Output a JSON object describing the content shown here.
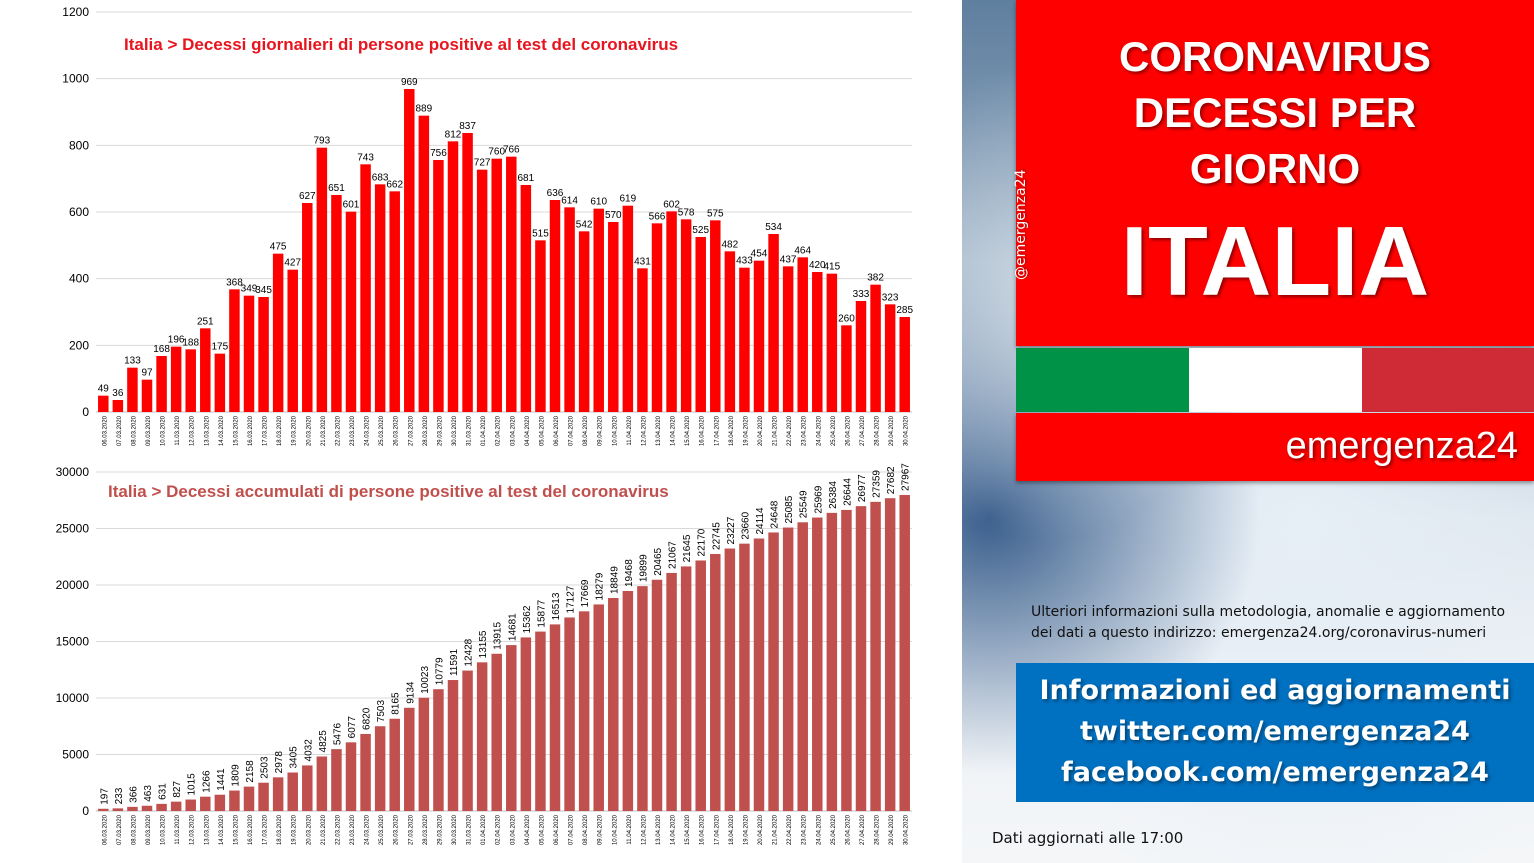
{
  "chart_data": [
    {
      "type": "bar",
      "title": "Italia > Decessi giornalieri di persone positive al test del coronavirus",
      "categories": [
        "06.03.2020",
        "07.03.2020",
        "08.03.2020",
        "09.03.2020",
        "10.03.2020",
        "11.03.2020",
        "12.03.2020",
        "13.03.2020",
        "14.03.2020",
        "15.03.2020",
        "16.03.2020",
        "17.03.2020",
        "18.03.2020",
        "19.03.2020",
        "20.03.2020",
        "21.03.2020",
        "22.03.2020",
        "23.03.2020",
        "24.03.2020",
        "25.03.2020",
        "26.03.2020",
        "27.03.2020",
        "28.03.2020",
        "29.03.2020",
        "30.03.2020",
        "31.03.2020",
        "01.04.2020",
        "02.04.2020",
        "03.04.2020",
        "04.04.2020",
        "05.04.2020",
        "06.04.2020",
        "07.04.2020",
        "08.04.2020",
        "09.04.2020",
        "10.04.2020",
        "11.04.2020",
        "12.04.2020",
        "13.04.2020",
        "14.04.2020",
        "15.04.2020",
        "16.04.2020",
        "17.04.2020",
        "18.04.2020",
        "19.04.2020",
        "20.04.2020",
        "21.04.2020",
        "22.04.2020",
        "23.04.2020",
        "24.04.2020",
        "25.04.2020",
        "26.04.2020",
        "27.04.2020",
        "28.04.2020",
        "29.04.2020",
        "30.04.2020"
      ],
      "values": [
        49,
        36,
        133,
        97,
        168,
        196,
        188,
        251,
        175,
        368,
        349,
        345,
        475,
        427,
        627,
        793,
        651,
        601,
        743,
        683,
        662,
        969,
        889,
        756,
        812,
        837,
        727,
        760,
        766,
        681,
        515,
        636,
        614,
        542,
        610,
        570,
        619,
        431,
        566,
        602,
        578,
        525,
        575,
        482,
        433,
        454,
        534,
        437,
        464,
        420,
        415,
        260,
        333,
        382,
        323,
        285
      ],
      "ylim": [
        0,
        1200
      ],
      "yticks": [
        0,
        200,
        400,
        600,
        800,
        1000,
        1200
      ],
      "grid": true,
      "bar_color": "#ff0000",
      "title_color": "#e8141e"
    },
    {
      "type": "bar",
      "title": "Italia > Decessi accumulati di persone positive al test del coronavirus",
      "categories": [
        "06.03.2020",
        "07.03.2020",
        "08.03.2020",
        "09.03.2020",
        "10.03.2020",
        "11.03.2020",
        "12.03.2020",
        "13.03.2020",
        "14.03.2020",
        "15.03.2020",
        "16.03.2020",
        "17.03.2020",
        "18.03.2020",
        "19.03.2020",
        "20.03.2020",
        "21.03.2020",
        "22.03.2020",
        "23.03.2020",
        "24.03.2020",
        "25.03.2020",
        "26.03.2020",
        "27.03.2020",
        "28.03.2020",
        "29.03.2020",
        "30.03.2020",
        "31.03.2020",
        "01.04.2020",
        "02.04.2020",
        "03.04.2020",
        "04.04.2020",
        "05.04.2020",
        "06.04.2020",
        "07.04.2020",
        "08.04.2020",
        "09.04.2020",
        "10.04.2020",
        "11.04.2020",
        "12.04.2020",
        "13.04.2020",
        "14.04.2020",
        "15.04.2020",
        "16.04.2020",
        "17.04.2020",
        "18.04.2020",
        "19.04.2020",
        "20.04.2020",
        "21.04.2020",
        "22.04.2020",
        "23.04.2020",
        "24.04.2020",
        "25.04.2020",
        "26.04.2020",
        "27.04.2020",
        "28.04.2020",
        "29.04.2020",
        "30.04.2020"
      ],
      "values": [
        197,
        233,
        366,
        463,
        631,
        827,
        1015,
        1266,
        1441,
        1809,
        2158,
        2503,
        2978,
        3405,
        4032,
        4825,
        5476,
        6077,
        6820,
        7503,
        8165,
        9134,
        10023,
        10779,
        11591,
        12428,
        13155,
        13915,
        14681,
        15362,
        15877,
        16513,
        17127,
        17669,
        18279,
        18849,
        19468,
        19899,
        20465,
        21067,
        21645,
        22170,
        22745,
        23227,
        23660,
        24114,
        24648,
        25085,
        25549,
        25969,
        26384,
        26644,
        26977,
        27359,
        27682,
        27967
      ],
      "ylim": [
        0,
        30000
      ],
      "yticks": [
        0,
        5000,
        10000,
        15000,
        20000,
        25000,
        30000
      ],
      "grid": true,
      "bar_color": "#c0504d",
      "title_color": "#c0504d"
    }
  ],
  "panel": {
    "title_lines": [
      "CORONAVIRUS",
      "DECESSI PER",
      "GIORNO"
    ],
    "country": "ITALIA",
    "brand": "emergenza24",
    "handle": "@emergenza24",
    "flag_colors": [
      "#009246",
      "#ffffff",
      "#ce2b37"
    ],
    "note_lines": [
      "Ulteriori informazioni sulla metodologia, anomalie e aggiornamento",
      "dei dati a questo indirizzo: emergenza24.org/coronavirus-numeri"
    ],
    "info_lines": [
      "Informazioni ed aggiornamenti",
      "twitter.com/emergenza24",
      "facebook.com/emergenza24"
    ],
    "updated": "Dati aggiornati alle 17:00"
  }
}
